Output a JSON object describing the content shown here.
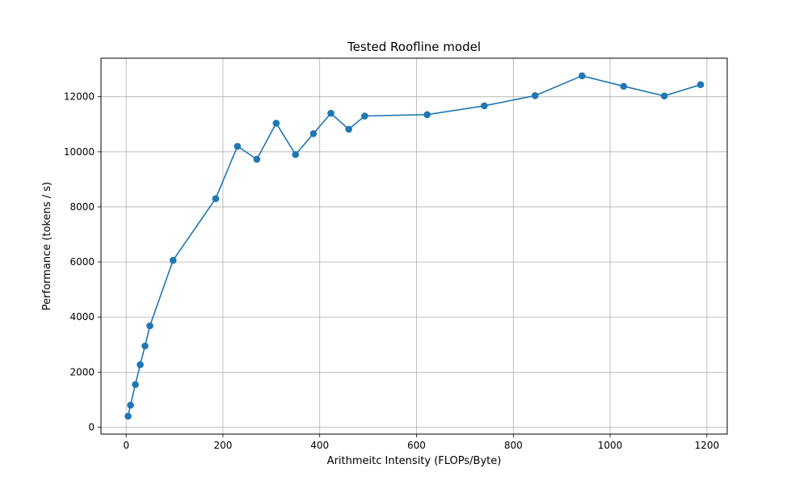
{
  "chart_data": {
    "type": "line",
    "title": "Tested Roofline model",
    "xlabel": "Arithmeitc Intensity (FLOPs/Byte)",
    "ylabel": "Performance (tokens / s)",
    "xlim": [
      -52,
      1242
    ],
    "ylim": [
      -250,
      13400
    ],
    "xticks": [
      0,
      200,
      400,
      600,
      800,
      1000,
      1200
    ],
    "yticks": [
      0,
      2000,
      4000,
      6000,
      8000,
      10000,
      12000
    ],
    "grid": true,
    "marker": "circle",
    "color": "#1f77b4",
    "series": [
      {
        "x": [
          4,
          9,
          19,
          29,
          39,
          49,
          97,
          185,
          230,
          270,
          310,
          350,
          387,
          423,
          460,
          493,
          622,
          740,
          845,
          942,
          1028,
          1112,
          1187
        ],
        "y": [
          400,
          800,
          1550,
          2270,
          2950,
          3680,
          6060,
          8300,
          10200,
          9730,
          11040,
          9900,
          10660,
          11400,
          10820,
          11300,
          11350,
          11670,
          12040,
          12760,
          12380,
          12030,
          12440
        ]
      }
    ]
  }
}
